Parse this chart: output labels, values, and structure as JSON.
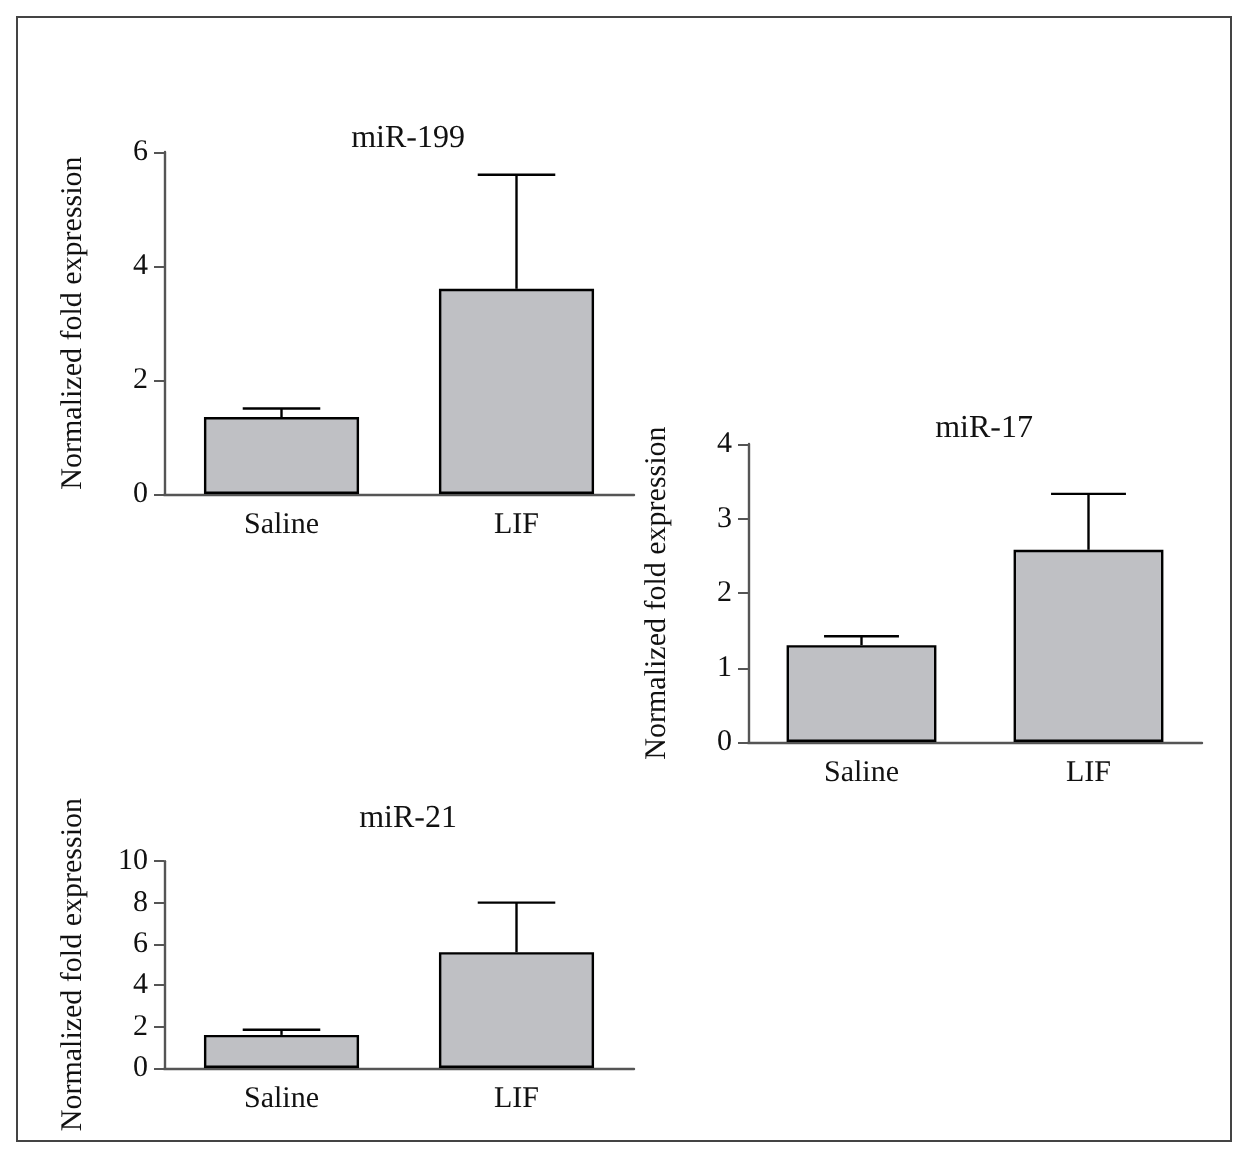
{
  "chart_data": [
    {
      "type": "bar",
      "title": "miR-199",
      "ylabel": "Normalized fold expression",
      "categories": [
        "Saline",
        "LIF"
      ],
      "values": [
        1.35,
        3.6
      ],
      "errors": [
        [
          1.35,
          1.5
        ],
        [
          3.6,
          5.6
        ]
      ],
      "color": "#bfc0c4",
      "ylim": [
        0,
        6
      ],
      "yticks": [
        0,
        2,
        4,
        6
      ]
    },
    {
      "type": "bar",
      "title": "miR-17",
      "ylabel": "Normalized fold expression",
      "categories": [
        "Saline",
        "LIF"
      ],
      "values": [
        1.3,
        2.58
      ],
      "errors": [
        [
          1.3,
          1.42
        ],
        [
          2.58,
          3.33
        ]
      ],
      "color": "#bfc0c4",
      "ylim": [
        0,
        4
      ],
      "yticks": [
        0,
        1,
        2,
        3,
        4
      ]
    },
    {
      "type": "bar",
      "title": "miR-21",
      "ylabel": "Normalized fold expression",
      "categories": [
        "Saline",
        "LIF"
      ],
      "values": [
        1.6,
        5.6
      ],
      "errors": [
        [
          1.6,
          1.85
        ],
        [
          5.6,
          8
        ]
      ],
      "color": "#bfc0c4",
      "ylim": [
        0,
        10
      ],
      "yticks": [
        0,
        2,
        4,
        6,
        8,
        10
      ]
    }
  ]
}
